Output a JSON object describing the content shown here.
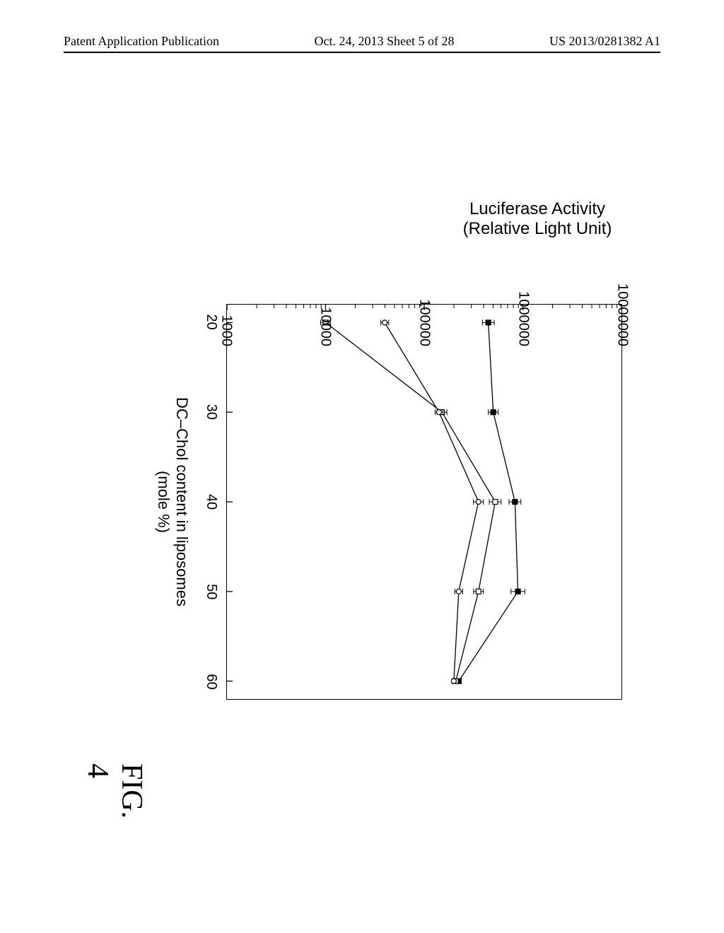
{
  "header": {
    "left": "Patent Application Publication",
    "center": "Oct. 24, 2013  Sheet 5 of 28",
    "right": "US 2013/0281382 A1"
  },
  "chart": {
    "type": "line",
    "figure_label": "FIG. 4",
    "xlabel": "DC–Chol content in liposomes\n(mole %)",
    "ylabel": "Luciferase Activity\n(Relative Light Unit)",
    "label_fontsize": 22,
    "xlim": [
      18,
      62
    ],
    "ylim_log": [
      3,
      7
    ],
    "xticks": [
      20,
      30,
      40,
      50,
      60
    ],
    "yticks_log": [
      3,
      4,
      5,
      6,
      7
    ],
    "ytick_labels": [
      "1000",
      "10000",
      "100000",
      "1000000",
      "10000000"
    ],
    "background_color": "#ffffff",
    "axis_color": "#000000",
    "line_width": 1.3,
    "marker_size": 7,
    "series": [
      {
        "name": "series-a",
        "marker": "filled-square",
        "color": "#000000",
        "stroke": "#000000",
        "x": [
          20,
          30,
          40,
          50,
          60
        ],
        "ylog": [
          5.65,
          5.7,
          5.92,
          5.95,
          5.35
        ],
        "err": [
          0.06,
          0.05,
          0.06,
          0.07,
          0.02
        ]
      },
      {
        "name": "series-b",
        "marker": "open-square",
        "color": "#ffffff",
        "stroke": "#000000",
        "x": [
          20,
          30,
          40,
          50,
          60
        ],
        "ylog": [
          4.0,
          5.18,
          5.72,
          5.55,
          5.32
        ],
        "err": [
          0.05,
          0.05,
          0.06,
          0.05,
          0.02
        ]
      },
      {
        "name": "series-c",
        "marker": "open-circle",
        "color": "#ffffff",
        "stroke": "#000000",
        "x": [
          20,
          30,
          40,
          50,
          60
        ],
        "ylog": [
          4.6,
          5.15,
          5.55,
          5.35,
          5.3
        ],
        "err": [
          0.04,
          0.04,
          0.05,
          0.04,
          0.02
        ]
      }
    ]
  }
}
